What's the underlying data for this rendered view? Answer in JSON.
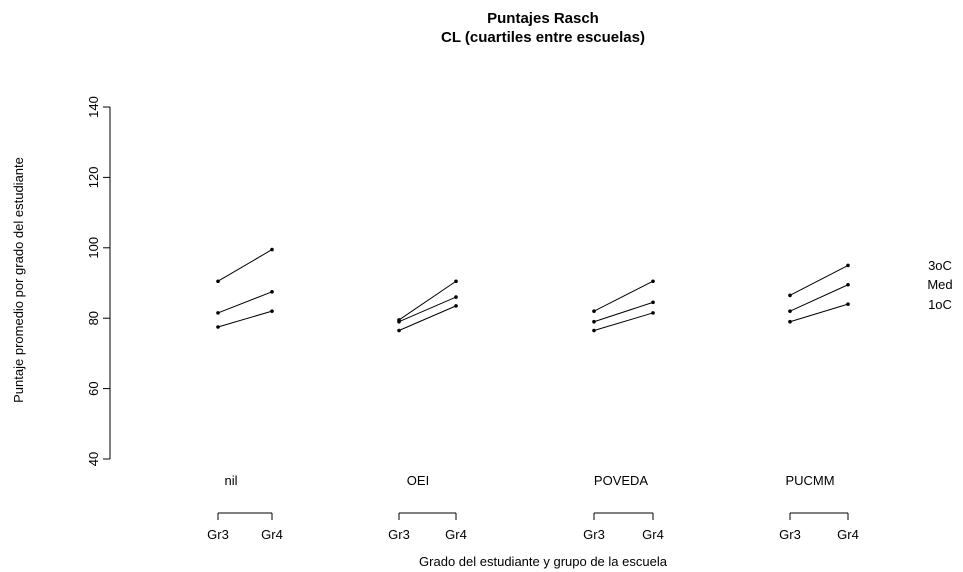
{
  "chart_data": {
    "type": "line",
    "title": "Puntajes Rasch",
    "subtitle": "CL (cuartiles entre escuelas)",
    "ylabel": "Puntaje promedio por grado del estudiante",
    "xlabel": "Grado del estudiante y grupo de la escuela",
    "ylim": [
      40,
      140
    ],
    "yticks": [
      40,
      60,
      80,
      100,
      120,
      140
    ],
    "x": [
      "Gr3",
      "Gr4"
    ],
    "grid": false,
    "groups": [
      {
        "name": "nil",
        "series": [
          {
            "name": "3oC",
            "values": [
              90.5,
              99.5
            ]
          },
          {
            "name": "Med",
            "values": [
              81.5,
              87.5
            ]
          },
          {
            "name": "1oC",
            "values": [
              77.5,
              82.0
            ]
          }
        ]
      },
      {
        "name": "OEI",
        "series": [
          {
            "name": "3oC",
            "values": [
              79.5,
              90.5
            ]
          },
          {
            "name": "Med",
            "values": [
              79.0,
              86.0
            ]
          },
          {
            "name": "1oC",
            "values": [
              76.5,
              83.5
            ]
          }
        ]
      },
      {
        "name": "POVEDA",
        "series": [
          {
            "name": "3oC",
            "values": [
              82.0,
              90.5
            ]
          },
          {
            "name": "Med",
            "values": [
              79.0,
              84.5
            ]
          },
          {
            "name": "1oC",
            "values": [
              76.5,
              81.5
            ]
          }
        ]
      },
      {
        "name": "PUCMM",
        "series": [
          {
            "name": "3oC",
            "values": [
              86.5,
              95.0
            ]
          },
          {
            "name": "Med",
            "values": [
              82.0,
              89.5
            ]
          },
          {
            "name": "1oC",
            "values": [
              79.0,
              84.0
            ]
          }
        ]
      }
    ],
    "side_labels": [
      "3oC",
      "Med",
      "1oC"
    ]
  }
}
